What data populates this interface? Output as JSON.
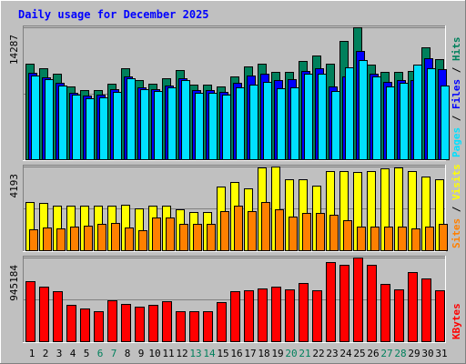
{
  "title": "Daily usage for December 2025",
  "colors": {
    "background": "#c0c0c0",
    "title": "#0000ff",
    "hits": "#00805c",
    "files": "#0000ff",
    "pages": "#00e0ff",
    "visits": "#ffff00",
    "sites": "#ff8000",
    "kbytes": "#ff0000",
    "weekday_label": "#000000",
    "weekend_label": "#00805c"
  },
  "chart_data": [
    {
      "type": "bar",
      "name": "hits-files-pages",
      "max_label": "14287",
      "ylim": [
        0,
        14287
      ],
      "legend": [
        "Pages",
        "Files",
        "Hits"
      ],
      "series": [
        {
          "name": "Hits",
          "values": [
            10300,
            9850,
            9300,
            7900,
            7500,
            7500,
            8200,
            9900,
            8600,
            8200,
            8800,
            9700,
            8100,
            8100,
            7900,
            9000,
            10050,
            10300,
            9500,
            9500,
            10650,
            11200,
            10350,
            12800,
            14287,
            10250,
            9500,
            9500,
            9600,
            12100,
            10800
          ]
        },
        {
          "name": "Files",
          "values": [
            9350,
            8900,
            8300,
            7200,
            6900,
            6950,
            7600,
            9000,
            7800,
            7600,
            8000,
            8800,
            7450,
            7450,
            7250,
            8300,
            9050,
            9300,
            8600,
            8700,
            9600,
            9900,
            7900,
            9000,
            11700,
            9300,
            8400,
            8600,
            8600,
            10900,
            9750
          ]
        },
        {
          "name": "Pages",
          "values": [
            9100,
            8700,
            8000,
            6950,
            6650,
            6700,
            7300,
            8800,
            7550,
            7350,
            7750,
            8550,
            7200,
            7200,
            7000,
            7800,
            8100,
            8400,
            7700,
            7800,
            9300,
            9250,
            7400,
            10000,
            10750,
            9000,
            7900,
            8300,
            10200,
            9900,
            8000
          ]
        }
      ]
    },
    {
      "type": "bar",
      "name": "visits-sites",
      "max_label": "4193",
      "ylim": [
        0,
        4193
      ],
      "legend": [
        "Sites",
        "Visits"
      ],
      "series": [
        {
          "name": "Visits",
          "values": [
            2400,
            2350,
            2250,
            2250,
            2250,
            2250,
            2250,
            2300,
            2100,
            2250,
            2250,
            2050,
            1900,
            1900,
            3180,
            3400,
            3120,
            4150,
            4200,
            3550,
            3550,
            3250,
            3950,
            3980,
            3930,
            3960,
            4100,
            4150,
            3950,
            3700,
            3550
          ]
        },
        {
          "name": "Sites",
          "values": [
            1050,
            1150,
            1100,
            1200,
            1250,
            1300,
            1350,
            1150,
            1000,
            1650,
            1650,
            1300,
            1300,
            1300,
            1950,
            2230,
            1950,
            2400,
            2050,
            1700,
            1850,
            1850,
            1800,
            1500,
            1200,
            1200,
            1200,
            1200,
            1100,
            1200,
            1300
          ]
        }
      ]
    },
    {
      "type": "bar",
      "name": "kbytes",
      "max_label": "945184",
      "ylim": [
        0,
        945184
      ],
      "legend": [
        "KBytes"
      ],
      "series": [
        {
          "name": "KBytes",
          "values": [
            680000,
            620000,
            560000,
            410000,
            370000,
            340000,
            460000,
            420000,
            390000,
            410000,
            450000,
            340000,
            340000,
            340000,
            440000,
            560000,
            580000,
            600000,
            620000,
            590000,
            660000,
            580000,
            895000,
            860000,
            945184,
            860000,
            650000,
            590000,
            780000,
            710000,
            580000
          ]
        }
      ]
    }
  ],
  "days": [
    "1",
    "2",
    "3",
    "4",
    "5",
    "6",
    "7",
    "8",
    "9",
    "10",
    "11",
    "12",
    "13",
    "14",
    "15",
    "16",
    "17",
    "18",
    "19",
    "20",
    "21",
    "22",
    "23",
    "24",
    "25",
    "26",
    "27",
    "28",
    "29",
    "30",
    "31"
  ],
  "weekend_days": [
    6,
    7,
    13,
    14,
    20,
    21,
    27,
    28
  ]
}
